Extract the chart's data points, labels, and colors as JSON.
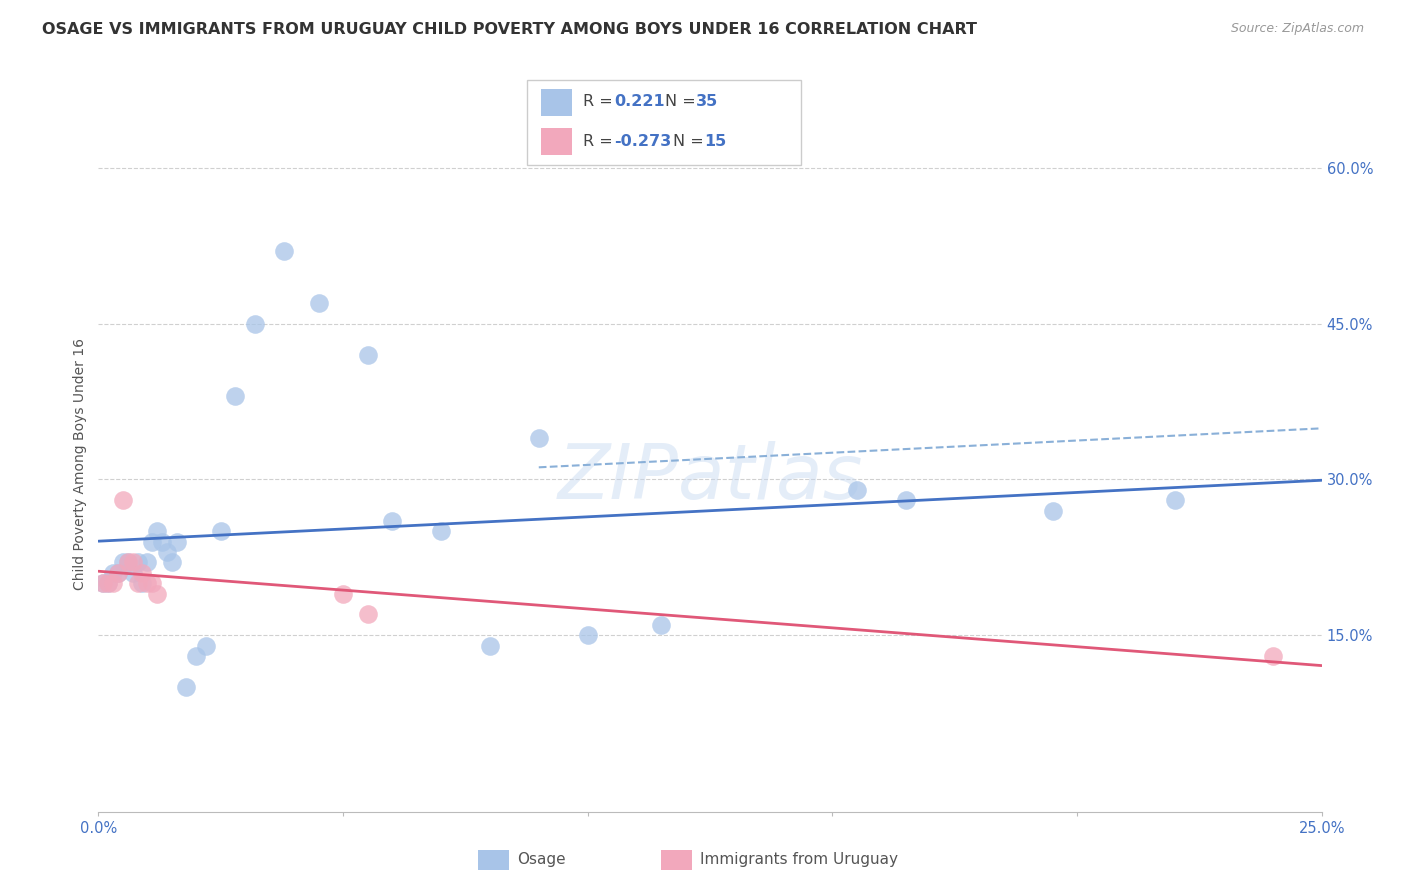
{
  "title": "OSAGE VS IMMIGRANTS FROM URUGUAY CHILD POVERTY AMONG BOYS UNDER 16 CORRELATION CHART",
  "source": "Source: ZipAtlas.com",
  "ylabel": "Child Poverty Among Boys Under 16",
  "xlim": [
    0.0,
    0.25
  ],
  "ylim": [
    -0.02,
    0.65
  ],
  "yticks": [
    0.15,
    0.3,
    0.45,
    0.6
  ],
  "ytick_labels": [
    "15.0%",
    "30.0%",
    "45.0%",
    "60.0%"
  ],
  "xticks": [
    0.0,
    0.05,
    0.1,
    0.15,
    0.2,
    0.25
  ],
  "xtick_labels": [
    "0.0%",
    "",
    "",
    "",
    "",
    "25.0%"
  ],
  "background_color": "#ffffff",
  "grid_color": "#d0d0d0",
  "osage_color": "#a8c4e8",
  "uruguay_color": "#f2a8bc",
  "osage_line_color": "#4472c4",
  "uruguay_line_color": "#e05878",
  "dashed_line_color": "#a8c4e8",
  "tick_color": "#4472c4",
  "title_color": "#333333",
  "title_fontsize": 11.5,
  "axis_label_fontsize": 10,
  "tick_fontsize": 10.5,
  "osage_x": [
    0.001,
    0.002,
    0.003,
    0.004,
    0.005,
    0.006,
    0.007,
    0.008,
    0.009,
    0.01,
    0.011,
    0.012,
    0.013,
    0.014,
    0.015,
    0.016,
    0.018,
    0.02,
    0.022,
    0.025,
    0.028,
    0.032,
    0.038,
    0.045,
    0.055,
    0.06,
    0.07,
    0.08,
    0.09,
    0.1,
    0.115,
    0.155,
    0.165,
    0.195,
    0.22
  ],
  "osage_y": [
    0.2,
    0.2,
    0.21,
    0.21,
    0.22,
    0.22,
    0.21,
    0.22,
    0.2,
    0.22,
    0.24,
    0.25,
    0.24,
    0.23,
    0.22,
    0.24,
    0.1,
    0.13,
    0.14,
    0.25,
    0.38,
    0.45,
    0.52,
    0.47,
    0.42,
    0.26,
    0.25,
    0.14,
    0.34,
    0.15,
    0.16,
    0.29,
    0.28,
    0.27,
    0.28
  ],
  "uruguay_x": [
    0.001,
    0.002,
    0.003,
    0.004,
    0.005,
    0.006,
    0.007,
    0.008,
    0.009,
    0.01,
    0.011,
    0.012,
    0.05,
    0.055,
    0.24
  ],
  "uruguay_y": [
    0.2,
    0.2,
    0.2,
    0.21,
    0.28,
    0.22,
    0.22,
    0.2,
    0.21,
    0.2,
    0.2,
    0.19,
    0.19,
    0.17,
    0.13
  ],
  "legend_r_osage": "0.221",
  "legend_n_osage": "35",
  "legend_r_uruguay": "-0.273",
  "legend_n_uruguay": "15"
}
